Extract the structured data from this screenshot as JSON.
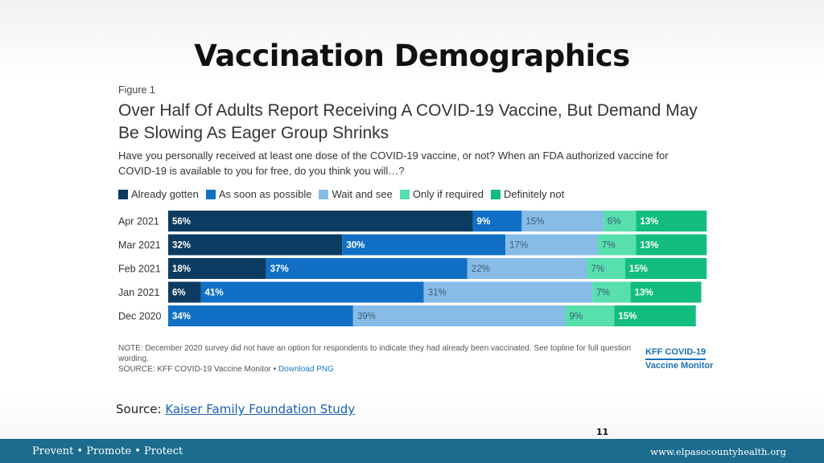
{
  "slide": {
    "title": "Vaccination Demographics",
    "source_label": "Source:",
    "source_link": "Kaiser Family Foundation Study",
    "page_number": "11",
    "footer_left": "Prevent • Promote • Protect",
    "footer_right": "www.elpasocountyhealth.org"
  },
  "figure": {
    "label": "Figure 1",
    "headline": "Over Half Of Adults Report Receiving A COVID-19 Vaccine, But Demand May Be Slowing As Eager Group Shrinks",
    "question": "Have you personally received at least one dose of the COVID-19 vaccine, or not? When an FDA authorized vaccine for COVID-19 is available to you for free, do you think you will…?",
    "note": "NOTE: December 2020 survey did not have an option for respondents to indicate they had already been vaccinated. See topline for full question wording.",
    "source_prefix": "SOURCE: KFF COVID-19 Vaccine Monitor •",
    "source_link": "Download PNG",
    "logo_line1": "KFF COVID-19",
    "logo_line2": "Vaccine Monitor"
  },
  "chart_data": {
    "type": "bar",
    "orientation": "horizontal",
    "stacked": true,
    "categories": [
      "Apr 2021",
      "Mar 2021",
      "Feb 2021",
      "Jan 2021",
      "Dec 2020"
    ],
    "series": [
      {
        "name": "Already gotten",
        "color": "#0b3b60",
        "values": [
          56,
          32,
          18,
          6,
          0
        ],
        "labels": [
          "56%",
          "32%",
          "18%",
          "6%",
          ""
        ]
      },
      {
        "name": "As soon as possible",
        "color": "#1170c5",
        "values": [
          9,
          30,
          37,
          41,
          34
        ],
        "labels": [
          "9%",
          "30%",
          "37%",
          "41%",
          "34%"
        ]
      },
      {
        "name": "Wait and see",
        "color": "#86bce6",
        "values": [
          15,
          17,
          22,
          31,
          39
        ],
        "labels": [
          "15%",
          "17%",
          "22%",
          "31%",
          "39%"
        ]
      },
      {
        "name": "Only if required",
        "color": "#57dfad",
        "values": [
          6,
          7,
          7,
          7,
          9
        ],
        "labels": [
          "6%",
          "7%",
          "7%",
          "7%",
          "9%"
        ]
      },
      {
        "name": "Definitely not",
        "color": "#12bd7d",
        "values": [
          13,
          13,
          15,
          13,
          15
        ],
        "labels": [
          "13%",
          "13%",
          "15%",
          "13%",
          "15%"
        ]
      }
    ],
    "label_colors": [
      "#ffffff",
      "#ffffff",
      "#3d5d73",
      "#3d5d73",
      "#ffffff"
    ],
    "legend_position": "top-left",
    "grid": false
  }
}
